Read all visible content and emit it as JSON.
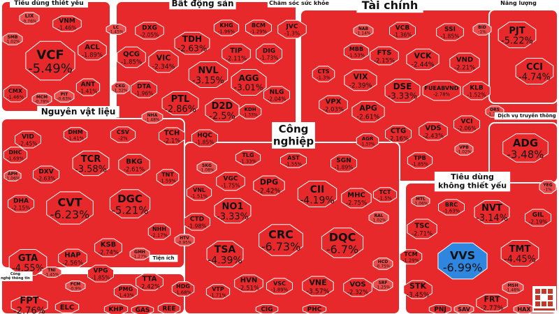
{
  "colors": {
    "down": "#e8292b",
    "down_light": "#ee4a4a",
    "floor": "#2e86de",
    "border": "#ffffff"
  },
  "sectors": [
    {
      "name": "Tiêu dùng thiết yếu"
    },
    {
      "name": "Bất động sản"
    },
    {
      "name": "Chăm sóc sức khỏe"
    },
    {
      "name": "Tài chính"
    },
    {
      "name": "Năng lượng"
    },
    {
      "name": "Nguyên vật liệu"
    },
    {
      "name": "Công nghiệp"
    },
    {
      "name": "Dịch vụ truyền thông"
    },
    {
      "name": "Tiêu dùng không thiết yếu"
    },
    {
      "name": "Tiện ích"
    },
    {
      "name": "Công nghệ thông tin"
    }
  ],
  "chart_data": {
    "type": "heatmap",
    "title": "",
    "series": [
      {
        "symbol": "VCF",
        "change": "-5.49%"
      },
      {
        "symbol": "ACL",
        "change": "-1.89%"
      },
      {
        "symbol": "VNM",
        "change": "-1.46%"
      },
      {
        "symbol": "ANT",
        "change": "-1.41%"
      },
      {
        "symbol": "CMX",
        "change": "-1.46%"
      },
      {
        "symbol": "TDH",
        "change": "-2.63%"
      },
      {
        "symbol": "KHG",
        "change": "-1.96%"
      },
      {
        "symbol": "BCM",
        "change": "-1.29%"
      },
      {
        "symbol": "QCG",
        "change": "-1.85%"
      },
      {
        "symbol": "VIC",
        "change": "-2.34%"
      },
      {
        "symbol": "DXG",
        "change": "-2.05%"
      },
      {
        "symbol": "TIP",
        "change": "-2.11%"
      },
      {
        "symbol": "DIG",
        "change": "-1.73%"
      },
      {
        "symbol": "NVL",
        "change": "-3.15%"
      },
      {
        "symbol": "AGG",
        "change": "-3.01%"
      },
      {
        "symbol": "DTA",
        "change": "-1.96%"
      },
      {
        "symbol": "PTL",
        "change": "-2.86%"
      },
      {
        "symbol": "D2D",
        "change": "-2.5%"
      },
      {
        "symbol": "NLG",
        "change": "-2.04%"
      },
      {
        "symbol": "TCH",
        "change": "-2.1%"
      },
      {
        "symbol": "HQC",
        "change": "-1.85%"
      },
      {
        "symbol": "KDH",
        "change": "-1.33%"
      },
      {
        "symbol": "JVC",
        "change": "-1.3%"
      },
      {
        "symbol": "VCB",
        "change": "-1.36%"
      },
      {
        "symbol": "SSI",
        "change": "-1.85%"
      },
      {
        "symbol": "MBB",
        "change": "-1.53%"
      },
      {
        "symbol": "FTS",
        "change": "-2.15%"
      },
      {
        "symbol": "VCK",
        "change": "-2.44%"
      },
      {
        "symbol": "VND",
        "change": "-2.21%"
      },
      {
        "symbol": "CTS",
        "change": "-1.3%"
      },
      {
        "symbol": "VIX",
        "change": "-2.39%"
      },
      {
        "symbol": "DSE",
        "change": "-3.33%"
      },
      {
        "symbol": "FUEABVND",
        "change": "-2.78%"
      },
      {
        "symbol": "KLB",
        "change": "-1.52%"
      },
      {
        "symbol": "VPX",
        "change": "-2.03%"
      },
      {
        "symbol": "APG",
        "change": "-2.61%"
      },
      {
        "symbol": "VDS",
        "change": "-2.43%"
      },
      {
        "symbol": "VCI",
        "change": "-2.06%"
      },
      {
        "symbol": "CTG",
        "change": "-2.16%"
      },
      {
        "symbol": "AGR",
        "change": "-1.37%"
      },
      {
        "symbol": "TPB",
        "change": "-1.85%"
      },
      {
        "symbol": "PJT",
        "change": "-5.22%"
      },
      {
        "symbol": "CCI",
        "change": "-4.74%"
      },
      {
        "symbol": "ADG",
        "change": "-3.48%"
      },
      {
        "symbol": "VID",
        "change": "-2.45%"
      },
      {
        "symbol": "DHM",
        "change": "-1.41%"
      },
      {
        "symbol": "CSV",
        "change": "-2%"
      },
      {
        "symbol": "DHC",
        "change": "-1.69%"
      },
      {
        "symbol": "TCR",
        "change": "-3.58%"
      },
      {
        "symbol": "BKG",
        "change": "-2.61%"
      },
      {
        "symbol": "DXV",
        "change": "-2.63%"
      },
      {
        "symbol": "TNT",
        "change": "-1.59%"
      },
      {
        "symbol": "DHA",
        "change": "-2.15%"
      },
      {
        "symbol": "CVT",
        "change": "-6.23%"
      },
      {
        "symbol": "DGC",
        "change": "-5.21%"
      },
      {
        "symbol": "NHH",
        "change": "-2.17%"
      },
      {
        "symbol": "GTA",
        "change": "-4.55%"
      },
      {
        "symbol": "KSB",
        "change": "-2.74%"
      },
      {
        "symbol": "HAP",
        "change": "-2.56%"
      },
      {
        "symbol": "VPG",
        "change": "-1.85%"
      },
      {
        "symbol": "TLG",
        "change": "-1.33%"
      },
      {
        "symbol": "AST",
        "change": "-1.55%"
      },
      {
        "symbol": "SGN",
        "change": "-1.89%"
      },
      {
        "symbol": "VGC",
        "change": "-1.75%"
      },
      {
        "symbol": "DPG",
        "change": "-2.42%"
      },
      {
        "symbol": "CII",
        "change": "-4.19%"
      },
      {
        "symbol": "MHC",
        "change": "-2.75%"
      },
      {
        "symbol": "TCT",
        "change": "-1.5%"
      },
      {
        "symbol": "VNL",
        "change": "-1.51%"
      },
      {
        "symbol": "NO1",
        "change": "-3.33%"
      },
      {
        "symbol": "CTD",
        "change": "-1.98%"
      },
      {
        "symbol": "CRC",
        "change": "-6.73%"
      },
      {
        "symbol": "DQC",
        "change": "-6.7%"
      },
      {
        "symbol": "TSA",
        "change": "-4.39%"
      },
      {
        "symbol": "HVN",
        "change": "-2.51%"
      },
      {
        "symbol": "VSC",
        "change": "-1.89%"
      },
      {
        "symbol": "VNE",
        "change": "-3.57%"
      },
      {
        "symbol": "VOS",
        "change": "-2.32%"
      },
      {
        "symbol": "VTP",
        "change": "-1.71%"
      },
      {
        "symbol": "BRC",
        "change": "-1.63%"
      },
      {
        "symbol": "NVT",
        "change": "-3.14%"
      },
      {
        "symbol": "TSC",
        "change": "-2.71%"
      },
      {
        "symbol": "GIL",
        "change": "-2.19%"
      },
      {
        "symbol": "VVS",
        "change": "-6.99%"
      },
      {
        "symbol": "TMT",
        "change": "-4.45%"
      },
      {
        "symbol": "TCM",
        "change": "-1.29%"
      },
      {
        "symbol": "STK",
        "change": "-3.45%"
      },
      {
        "symbol": "FRT",
        "change": "-2.77%"
      },
      {
        "symbol": "TTA",
        "change": "-2.42%"
      },
      {
        "symbol": "HDG",
        "change": "-1.68%"
      },
      {
        "symbol": "PMG",
        "change": "-1.43%"
      },
      {
        "symbol": "FPT",
        "change": "-2.76%"
      },
      {
        "symbol": "ELC",
        "change": ""
      },
      {
        "symbol": "KHP",
        "change": ""
      },
      {
        "symbol": "GAS",
        "change": ""
      },
      {
        "symbol": "REE",
        "change": ""
      },
      {
        "symbol": "CIG",
        "change": ""
      },
      {
        "symbol": "PHC",
        "change": ""
      },
      {
        "symbol": "PNJ",
        "change": ""
      },
      {
        "symbol": "SAV",
        "change": ""
      },
      {
        "symbol": "HAX",
        "change": ""
      },
      {
        "symbol": "LIX",
        "change": "-0.76%"
      },
      {
        "symbol": "SMB",
        "change": "-1.02%"
      },
      {
        "symbol": "MCM",
        "change": "-0.78%"
      },
      {
        "symbol": "PIT",
        "change": "-0.63%"
      },
      {
        "symbol": "YEG",
        "change": "-1%"
      },
      {
        "symbol": "ORS",
        "change": "-1.14%"
      },
      {
        "symbol": "BID",
        "change": "-1%"
      },
      {
        "symbol": "NAB",
        "change": "-1.14%"
      },
      {
        "symbol": "LC",
        "change": "-1.45%"
      },
      {
        "symbol": "CKG",
        "change": "-1.32%"
      },
      {
        "symbol": "NHA",
        "change": "-1.48%"
      },
      {
        "symbol": "VPB",
        "change": "-1.02%"
      },
      {
        "symbol": "APH",
        "change": "-1.06%"
      },
      {
        "symbol": "TNI",
        "change": "-1.45%"
      },
      {
        "symbol": "MTL",
        "change": "-1.06%"
      },
      {
        "symbol": "RAL",
        "change": "-1.02%"
      },
      {
        "symbol": "FCM",
        "change": "-0.9%"
      },
      {
        "symbol": "MSH",
        "change": "-1.48%"
      },
      {
        "symbol": "SRF",
        "change": "-1.25%"
      },
      {
        "symbol": "HCD",
        "change": "-0.75%"
      },
      {
        "symbol": "GMH",
        "change": "-1.27%"
      },
      {
        "symbol": "HTV",
        "change": "-0.95%"
      },
      {
        "symbol": "SKG",
        "change": "-1.08%"
      }
    ]
  }
}
